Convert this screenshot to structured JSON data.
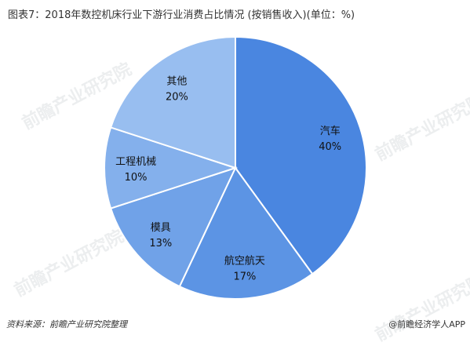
{
  "title": "图表7：2018年数控机床行业下游行业消费占比情况 (按销售收入)(单位：%)",
  "watermark": "前瞻产业研究院",
  "source": "资料来源：前瞻产业研究院整理",
  "brand": "@前瞻经济学人APP",
  "chart_data": {
    "type": "pie",
    "title": "图表7：2018年数控机床行业下游行业消费占比情况 (按销售收入)(单位：%)",
    "unit": "%",
    "slices": [
      {
        "label": "汽车",
        "value": 40,
        "display": "40%",
        "color": "#4a86e0"
      },
      {
        "label": "航空航天",
        "value": 17,
        "display": "17%",
        "color": "#5c94e4"
      },
      {
        "label": "模具",
        "value": 13,
        "display": "13%",
        "color": "#70a2e8"
      },
      {
        "label": "工程机械",
        "value": 10,
        "display": "10%",
        "color": "#84b0ec"
      },
      {
        "label": "其他",
        "value": 20,
        "display": "20%",
        "color": "#98bef0"
      }
    ]
  }
}
